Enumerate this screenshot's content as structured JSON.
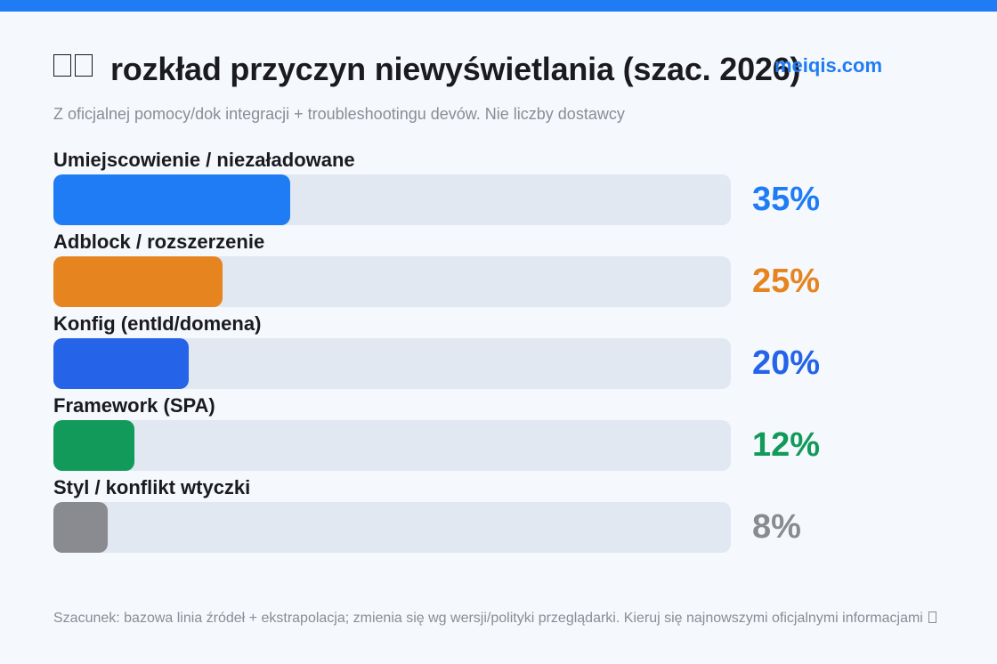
{
  "colors": {
    "top_bar": "#1f7cf5",
    "watermark": "#1f7cf5"
  },
  "header": {
    "title_icon": "emoji-icon",
    "title": "rozkład przyczyn niewyświetlania (szac. 2026)",
    "watermark": "meiqis.com",
    "subtitle": "Z oficjalnej pomocy/dok integracji + troubleshootingu devów. Nie liczby dostawcy"
  },
  "chart_data": {
    "type": "bar",
    "orientation": "horizontal",
    "title": "rozkład przyczyn niewyświetlania (szac. 2026)",
    "subtitle": "Z oficjalnej pomocy/dok integracji + troubleshootingu devów. Nie liczby dostawcy",
    "categories": [
      "Umiejscowienie / niezaładowane",
      "Adblock / rozszerzenie",
      "Konfig (entId/domena)",
      "Framework (SPA)",
      "Styl / konflikt wtyczki"
    ],
    "values": [
      35,
      25,
      20,
      12,
      8
    ],
    "value_labels": [
      "35%",
      "25%",
      "20%",
      "12%",
      "8%"
    ],
    "bar_colors": [
      "#1f7cf5",
      "#e68420",
      "#2563e8",
      "#129a5a",
      "#8a8b90"
    ],
    "xlim": [
      0,
      100
    ],
    "unit": "%",
    "grid": false,
    "legend": "none"
  },
  "footer": {
    "note": "Szacunek: bazowa linia źródeł + ekstrapolacja; zmienia się wg wersji/polityki przeglądarki. Kieruj się najnowszymi oficjalnymi informacjami",
    "note_icon": "emoji-icon"
  }
}
